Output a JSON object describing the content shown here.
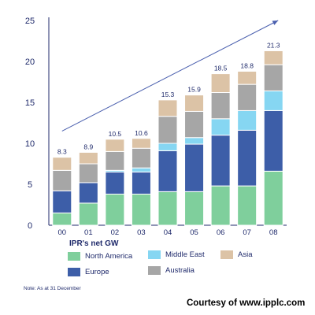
{
  "chart_data": {
    "type": "bar",
    "stacked": true,
    "categories": [
      "00",
      "01",
      "02",
      "03",
      "04",
      "05",
      "06",
      "07",
      "08"
    ],
    "series": [
      {
        "name": "North America",
        "color": "#7fcf9c",
        "values": [
          1.5,
          2.7,
          3.8,
          3.8,
          4.1,
          4.1,
          4.8,
          4.8,
          6.6
        ]
      },
      {
        "name": "Europe",
        "color": "#3d5ea8",
        "values": [
          2.7,
          2.5,
          2.7,
          2.7,
          5.0,
          5.8,
          6.2,
          6.8,
          7.4
        ]
      },
      {
        "name": "Middle East",
        "color": "#86d6f2",
        "values": [
          0.0,
          0.0,
          0.2,
          0.5,
          0.9,
          0.8,
          2.0,
          2.4,
          2.4
        ]
      },
      {
        "name": "Australia",
        "color": "#a6a6a6",
        "values": [
          2.5,
          2.3,
          2.3,
          2.4,
          3.3,
          3.2,
          3.2,
          3.2,
          3.2
        ]
      },
      {
        "name": "Asia",
        "color": "#dcc3a6",
        "values": [
          1.6,
          1.4,
          1.5,
          1.2,
          2.0,
          2.0,
          2.3,
          1.6,
          1.7
        ]
      }
    ],
    "totals": [
      "8.3",
      "8.9",
      "10.5",
      "10.6",
      "15.3",
      "15.9",
      "18.5",
      "18.8",
      "21.3"
    ],
    "ylim": [
      0,
      25
    ],
    "yticks": [
      0,
      5,
      10,
      15,
      20,
      25
    ],
    "trend_arrow": {
      "from": [
        0.0,
        11.5
      ],
      "to": [
        8.0,
        25.0
      ]
    },
    "grid": false,
    "legend_title": "IPR's net GW",
    "legend_position": "bottom"
  },
  "note": "Note: As at 31 December",
  "courtesy": "Courtesy of www.ipplc.com"
}
